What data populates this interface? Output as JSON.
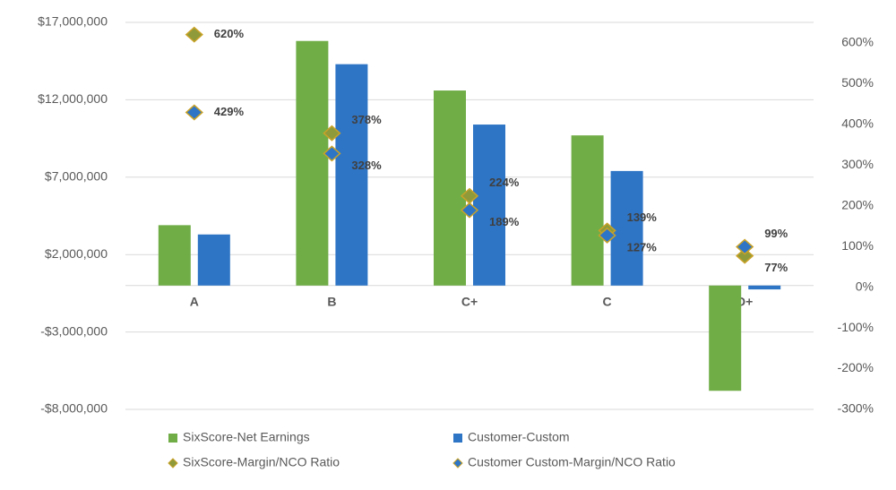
{
  "chart_data": {
    "type": "bar-scatter",
    "categories": [
      "A",
      "B",
      "C+",
      "C",
      "D+"
    ],
    "series": [
      {
        "name": "SixScore-Net Earnings",
        "color": "#70ad47",
        "kind": "bar",
        "values": [
          3900000,
          15800000,
          12600000,
          9700000,
          -6800000
        ]
      },
      {
        "name": "Customer-Custom",
        "color": "#2e75c6",
        "kind": "bar",
        "values": [
          3300000,
          14300000,
          10400000,
          7400000,
          -250000
        ]
      },
      {
        "name": "SixScore-Margin/NCO Ratio",
        "color": "#8f9a3a",
        "kind": "diamond",
        "axis": "y2",
        "values": [
          620,
          378,
          224,
          139,
          77
        ],
        "value_labels": [
          "620%",
          "378%",
          "224%",
          "139%",
          "77%"
        ]
      },
      {
        "name": "Customer Custom-Margin/NCO Ratio",
        "color": "#2e75c6",
        "kind": "diamond",
        "axis": "y2",
        "values": [
          429,
          328,
          189,
          127,
          99
        ],
        "value_labels": [
          "429%",
          "328%",
          "189%",
          "127%",
          "99%"
        ]
      }
    ],
    "ylim": [
      -8000000,
      17000000
    ],
    "yticks": [
      {
        "value": -8000000,
        "label": "-$8,000,000"
      },
      {
        "value": -3000000,
        "label": "-$3,000,000"
      },
      {
        "value": 2000000,
        "label": "$2,000,000"
      },
      {
        "value": 7000000,
        "label": "$7,000,000"
      },
      {
        "value": 12000000,
        "label": "$12,000,000"
      },
      {
        "value": 17000000,
        "label": "$17,000,000"
      }
    ],
    "y2lim": [
      -300,
      650
    ],
    "y2ticks": [
      {
        "value": -300,
        "label": "-300%"
      },
      {
        "value": -200,
        "label": "-200%"
      },
      {
        "value": -100,
        "label": "-100%"
      },
      {
        "value": 0,
        "label": "0%"
      },
      {
        "value": 100,
        "label": "100%"
      },
      {
        "value": 200,
        "label": "200%"
      },
      {
        "value": 300,
        "label": "300%"
      },
      {
        "value": 400,
        "label": "400%"
      },
      {
        "value": 500,
        "label": "500%"
      },
      {
        "value": 600,
        "label": "600%"
      }
    ],
    "grid": true
  }
}
